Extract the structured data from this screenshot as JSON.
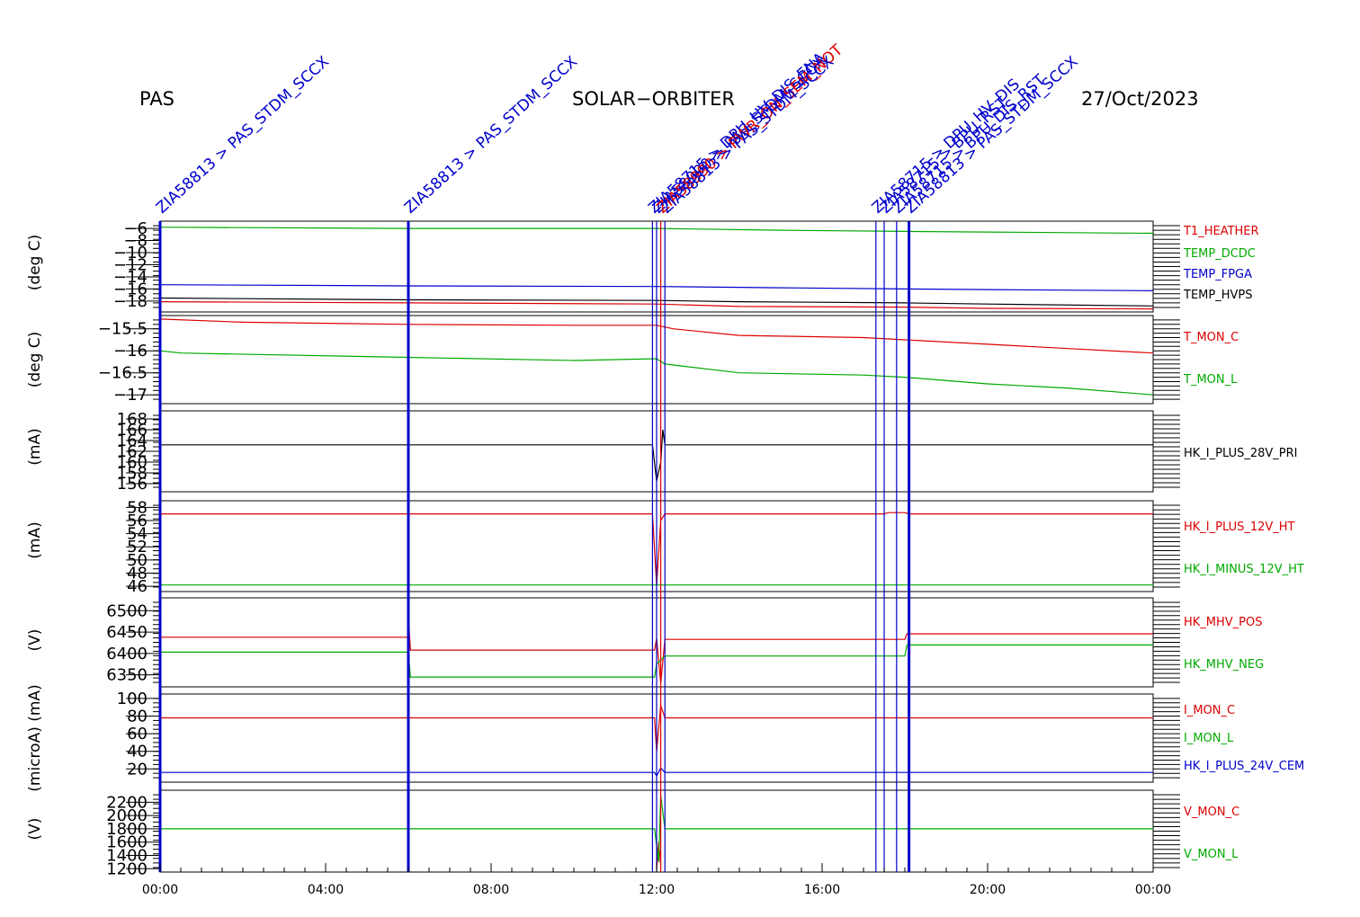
{
  "header": {
    "left": "PAS",
    "center": "SOLAR−ORBITER",
    "right": "27/Oct/2023"
  },
  "colors": {
    "red": "#dd0000",
    "green": "#00aa00",
    "blue": "#0000cc",
    "black": "#000000"
  },
  "events": [
    {
      "time": 0.0,
      "label": "ZIA58813 > PAS_STDM_SCCX",
      "color": "blue",
      "thick": true
    },
    {
      "time": 6.0,
      "label": "ZIA58813 > PAS_STDM_SCCX",
      "color": "blue",
      "thick": true
    },
    {
      "time": 11.9,
      "label": "ZIA58715 > DPU_HV_DIS_ENA",
      "color": "blue",
      "thick": false
    },
    {
      "time": 12.0,
      "label": "ZIA58990 > PAS_STDM_SCCX",
      "color": "blue",
      "thick": false
    },
    {
      "time": 12.1,
      "label": "ZIA58990 > PWR_ON_SEM_NOT",
      "color": "red",
      "thick": false
    },
    {
      "time": 12.2,
      "label": "ZIA58813 > PAS_STDM_SCCX",
      "color": "blue",
      "thick": false
    },
    {
      "time": 17.3,
      "label": "ZIA58715 > DPU_HV_DIS",
      "color": "blue",
      "thick": false
    },
    {
      "time": 17.5,
      "label": "ZIA58715 > BPU_RST",
      "color": "blue",
      "thick": false
    },
    {
      "time": 17.8,
      "label": "ZIA58715 > BPU_DIS_RST",
      "color": "blue",
      "thick": false
    },
    {
      "time": 18.1,
      "label": "ZIA58813 > PAS_STDM_SCCX",
      "color": "blue",
      "thick": true
    }
  ],
  "chart_data": {
    "type": "line",
    "title": "SOLAR−ORBITER",
    "xlabel": "",
    "x_ticks": [
      "00:00",
      "04:00",
      "08:00",
      "12:00",
      "16:00",
      "20:00",
      "00:00"
    ],
    "xlim_hours": [
      0,
      24
    ],
    "panels": [
      {
        "ylabel": "(deg C)",
        "ylim": [
          -19.8,
          -4.8
        ],
        "ticks": [
          -6,
          -8,
          -10,
          -12,
          -14,
          -16,
          -18
        ],
        "series": [
          {
            "name": "T1_HEATHER",
            "color": "red",
            "points": [
              [
                0,
                -18.1
              ],
              [
                6,
                -18.3
              ],
              [
                12,
                -18.5
              ],
              [
                14,
                -18.9
              ],
              [
                18,
                -19.0
              ],
              [
                20,
                -19.2
              ],
              [
                24,
                -19.3
              ]
            ]
          },
          {
            "name": "TEMP_DCDC",
            "color": "green",
            "points": [
              [
                0,
                -5.8
              ],
              [
                6,
                -6.0
              ],
              [
                12,
                -6.0
              ],
              [
                15,
                -6.3
              ],
              [
                18,
                -6.5
              ],
              [
                20,
                -6.6
              ],
              [
                24,
                -6.8
              ]
            ]
          },
          {
            "name": "TEMP_FPGA",
            "color": "blue",
            "points": [
              [
                0,
                -15.3
              ],
              [
                6,
                -15.5
              ],
              [
                12,
                -15.6
              ],
              [
                15,
                -15.8
              ],
              [
                18,
                -16.0
              ],
              [
                20,
                -16.1
              ],
              [
                24,
                -16.3
              ]
            ]
          },
          {
            "name": "TEMP_HVPS",
            "color": "black",
            "points": [
              [
                0,
                -17.5
              ],
              [
                6,
                -17.8
              ],
              [
                12,
                -17.9
              ],
              [
                14,
                -18.1
              ],
              [
                18,
                -18.3
              ],
              [
                20,
                -18.5
              ],
              [
                24,
                -18.8
              ]
            ]
          }
        ]
      },
      {
        "ylabel": "(deg C)",
        "ylim": [
          -17.2,
          -15.2
        ],
        "ticks": [
          -15.5,
          -16.0,
          -16.5,
          -17.0
        ],
        "series": [
          {
            "name": "T_MON_C",
            "color": "red",
            "points": [
              [
                0,
                -15.28
              ],
              [
                2,
                -15.35
              ],
              [
                6,
                -15.4
              ],
              [
                10,
                -15.42
              ],
              [
                12,
                -15.42
              ],
              [
                12.4,
                -15.5
              ],
              [
                14,
                -15.65
              ],
              [
                17,
                -15.7
              ],
              [
                18,
                -15.75
              ],
              [
                20,
                -15.85
              ],
              [
                22,
                -15.95
              ],
              [
                24,
                -16.05
              ]
            ]
          },
          {
            "name": "T_MON_L",
            "color": "green",
            "points": [
              [
                0,
                -16.0
              ],
              [
                0.5,
                -16.05
              ],
              [
                6,
                -16.15
              ],
              [
                10,
                -16.22
              ],
              [
                12,
                -16.18
              ],
              [
                12.2,
                -16.3
              ],
              [
                14,
                -16.5
              ],
              [
                17,
                -16.55
              ],
              [
                18,
                -16.6
              ],
              [
                20,
                -16.75
              ],
              [
                22,
                -16.85
              ],
              [
                24,
                -17.0
              ]
            ]
          }
        ]
      },
      {
        "ylabel": "(mA)",
        "ylim": [
          154.5,
          169.5
        ],
        "ticks": [
          168,
          166,
          164,
          162,
          160,
          158,
          156
        ],
        "series": [
          {
            "name": "HK_I_PLUS_28V_PRI",
            "color": "black",
            "points": [
              [
                0,
                163.2
              ],
              [
                11.9,
                163.2
              ],
              [
                12.0,
                156.5
              ],
              [
                12.1,
                160.0
              ],
              [
                12.15,
                166.0
              ],
              [
                12.2,
                163.2
              ],
              [
                24,
                163.2
              ]
            ]
          }
        ]
      },
      {
        "ylabel": "(mA)",
        "ylim": [
          45.2,
          59.0
        ],
        "ticks": [
          58,
          56,
          54,
          52,
          50,
          48,
          46
        ],
        "series": [
          {
            "name": "HK_I_PLUS_12V_HT",
            "color": "red",
            "points": [
              [
                0,
                57.0
              ],
              [
                11.9,
                57.0
              ],
              [
                12.0,
                46.2
              ],
              [
                12.1,
                56.0
              ],
              [
                12.2,
                57.0
              ],
              [
                17.5,
                57.0
              ],
              [
                17.6,
                57.2
              ],
              [
                18,
                57.2
              ],
              [
                18.1,
                57.0
              ],
              [
                24,
                57.0
              ]
            ]
          },
          {
            "name": "HK_I_MINUS_12V_HT",
            "color": "green",
            "points": [
              [
                0,
                46.2
              ],
              [
                24,
                46.2
              ]
            ]
          }
        ]
      },
      {
        "ylabel": "(V)",
        "ylim": [
          6322,
          6530
        ],
        "ticks": [
          6500,
          6450,
          6400,
          6350
        ],
        "series": [
          {
            "name": "HK_MHV_POS",
            "color": "red",
            "points": [
              [
                0,
                6438
              ],
              [
                6.0,
                6438
              ],
              [
                6.02,
                6458
              ],
              [
                6.05,
                6408
              ],
              [
                11.95,
                6408
              ],
              [
                12.0,
                6435
              ],
              [
                12.1,
                6330
              ],
              [
                12.2,
                6433
              ],
              [
                18,
                6433
              ],
              [
                18.05,
                6446
              ],
              [
                24,
                6446
              ]
            ]
          },
          {
            "name": "HK_MHV_NEG",
            "color": "green",
            "points": [
              [
                0,
                6403
              ],
              [
                6.0,
                6403
              ],
              [
                6.05,
                6345
              ],
              [
                11.95,
                6345
              ],
              [
                12.0,
                6375
              ],
              [
                12.2,
                6394
              ],
              [
                18,
                6394
              ],
              [
                18.05,
                6420
              ],
              [
                24,
                6420
              ]
            ]
          }
        ]
      },
      {
        "ylabel": "(microA) (mA)",
        "ylim": [
          5,
          105
        ],
        "ticks": [
          100,
          80,
          60,
          40,
          20
        ],
        "series": [
          {
            "name": "I_MON_C",
            "color": "red",
            "points": [
              [
                0,
                78
              ],
              [
                11.95,
                78
              ],
              [
                12.0,
                40
              ],
              [
                12.1,
                92
              ],
              [
                12.2,
                78
              ],
              [
                24,
                78
              ]
            ]
          },
          {
            "name": "I_MON_L",
            "color": "green",
            "points": []
          },
          {
            "name": "HK_I_PLUS_24V_CEM",
            "color": "blue",
            "points": [
              [
                0,
                16
              ],
              [
                11.95,
                16
              ],
              [
                12.0,
                12
              ],
              [
                12.1,
                21
              ],
              [
                12.2,
                16
              ],
              [
                24,
                16
              ]
            ]
          }
        ]
      },
      {
        "ylabel": "(V)",
        "ylim": [
          1150,
          2380
        ],
        "ticks": [
          2200,
          2000,
          1800,
          1600,
          1400,
          1200
        ],
        "series": [
          {
            "name": "V_MON_C",
            "color": "red",
            "points": [
              [
                12.0,
                1200
              ],
              [
                12.05,
                1600
              ],
              [
                12.1,
                1250
              ]
            ]
          },
          {
            "name": "V_MON_L",
            "color": "green",
            "points": [
              [
                0,
                1800
              ],
              [
                11.95,
                1800
              ],
              [
                12.05,
                1300
              ],
              [
                12.1,
                2300
              ],
              [
                12.2,
                1800
              ],
              [
                24,
                1800
              ]
            ]
          }
        ]
      }
    ]
  }
}
